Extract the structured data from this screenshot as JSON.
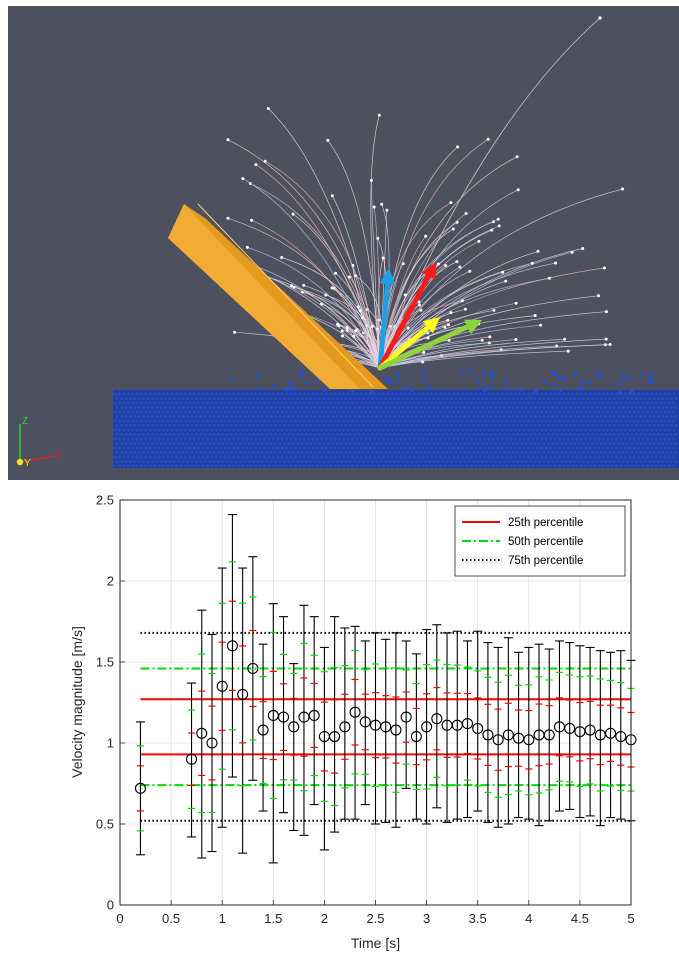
{
  "simulation": {
    "background": "#4d515f",
    "bed_color": "#1f3fa8",
    "blade_color": "#e59a1e",
    "axis_triad": {
      "z_label": "Z",
      "y_label": "Y",
      "x_label": "X"
    },
    "arrows": [
      {
        "color": "#1ea0e6",
        "icon": "blue-arrow"
      },
      {
        "color": "#ff1a1a",
        "icon": "red-arrow"
      },
      {
        "color": "#ffff1a",
        "icon": "yellow-arrow"
      },
      {
        "color": "#8ed43a",
        "icon": "green-arrow"
      }
    ]
  },
  "chart_data": {
    "type": "scatter",
    "xlabel": "Time [s]",
    "ylabel": "Velocity magnitude [m/s]",
    "xlim": [
      0,
      5
    ],
    "ylim": [
      0,
      2.5
    ],
    "xticks": [
      "0",
      "0.5",
      "1",
      "1.5",
      "2",
      "2.5",
      "3",
      "3.5",
      "4",
      "4.5",
      "5"
    ],
    "yticks": [
      "0",
      "0.5",
      "1",
      "1.5",
      "2",
      "2.5"
    ],
    "grid": true,
    "legend_position": "top-right",
    "reference_lines": [
      {
        "name": "25th percentile",
        "style": "solid",
        "color": "#ff0000",
        "y": [
          0.93,
          1.27
        ]
      },
      {
        "name": "50th percentile",
        "style": "dash-dot",
        "color": "#00dd00",
        "y": [
          0.74,
          1.46
        ]
      },
      {
        "name": "75th percentile",
        "style": "dotted",
        "color": "#000000",
        "y": [
          0.52,
          1.68
        ]
      }
    ],
    "series": [
      {
        "x": [
          0.2,
          0.7,
          0.8,
          0.9,
          1.0,
          1.1,
          1.2,
          1.3,
          1.4,
          1.5,
          1.6,
          1.7,
          1.8,
          1.9,
          2.0,
          2.1,
          2.2,
          2.3,
          2.4,
          2.5,
          2.6,
          2.7,
          2.8,
          2.9,
          3.0,
          3.1,
          3.2,
          3.3,
          3.4,
          3.5,
          3.6,
          3.7,
          3.8,
          3.9,
          4.0,
          4.1,
          4.2,
          4.3,
          4.4,
          4.5,
          4.6,
          4.7,
          4.8,
          4.9,
          5.0
        ],
        "mean": [
          0.72,
          0.9,
          1.06,
          1.0,
          1.35,
          1.6,
          1.3,
          1.46,
          1.08,
          1.17,
          1.16,
          1.1,
          1.16,
          1.17,
          1.04,
          1.04,
          1.1,
          1.19,
          1.13,
          1.11,
          1.1,
          1.08,
          1.16,
          1.04,
          1.1,
          1.15,
          1.11,
          1.11,
          1.12,
          1.09,
          1.05,
          1.02,
          1.05,
          1.03,
          1.02,
          1.05,
          1.05,
          1.1,
          1.09,
          1.07,
          1.08,
          1.05,
          1.06,
          1.04,
          1.02
        ],
        "lower": [
          0.31,
          0.42,
          0.29,
          0.33,
          0.48,
          0.79,
          0.32,
          0.77,
          0.58,
          0.26,
          0.57,
          0.46,
          0.43,
          0.62,
          0.34,
          0.45,
          0.53,
          0.53,
          0.62,
          0.5,
          0.51,
          0.48,
          0.72,
          0.53,
          0.5,
          0.6,
          0.51,
          0.53,
          0.54,
          0.58,
          0.51,
          0.48,
          0.5,
          0.54,
          0.53,
          0.49,
          0.52,
          0.58,
          0.59,
          0.54,
          0.55,
          0.49,
          0.54,
          0.53,
          0.52
        ],
        "upper": [
          1.13,
          1.37,
          1.82,
          1.67,
          2.08,
          2.41,
          2.08,
          2.15,
          1.61,
          1.86,
          1.78,
          1.49,
          1.85,
          1.78,
          1.59,
          1.78,
          1.71,
          1.72,
          1.63,
          1.68,
          1.64,
          1.68,
          1.63,
          1.55,
          1.7,
          1.73,
          1.68,
          1.69,
          1.63,
          1.69,
          1.62,
          1.59,
          1.65,
          1.56,
          1.59,
          1.61,
          1.58,
          1.63,
          1.62,
          1.6,
          1.59,
          1.57,
          1.56,
          1.57,
          1.51
        ]
      }
    ]
  }
}
